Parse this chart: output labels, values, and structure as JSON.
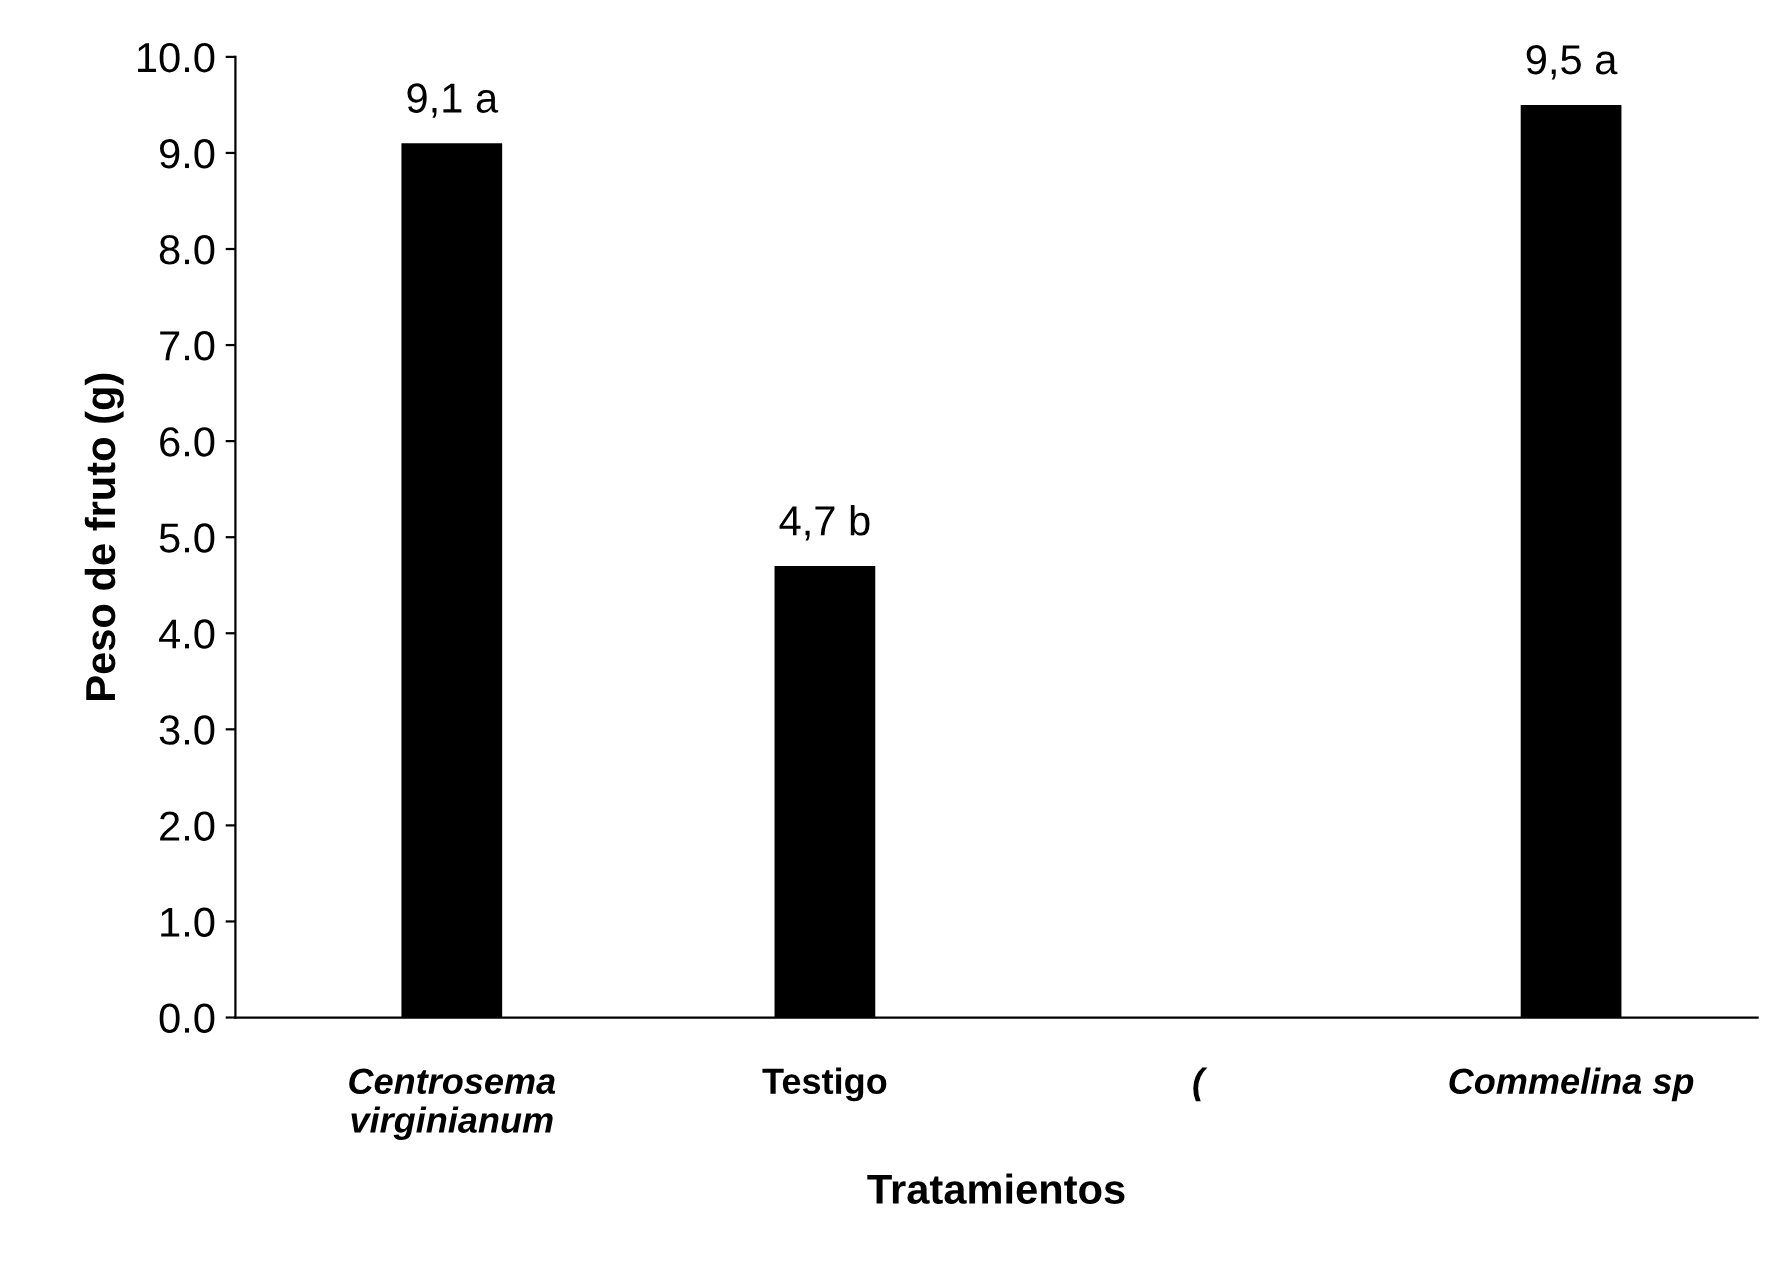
{
  "chart_data": {
    "type": "bar",
    "xlabel": "Tratamientos",
    "ylabel": "Peso de fruto (g)",
    "categories": [
      "Centrosema\nvirginianum",
      "Testigo",
      "(",
      "Commelina sp"
    ],
    "values": [
      9.1,
      4.7,
      null,
      9.5
    ],
    "value_labels": [
      "9,1 a",
      "4,7 b",
      null,
      "9,5 a"
    ],
    "color": "#000000",
    "ylim": [
      0,
      10
    ],
    "yticks": [
      {
        "value": 0,
        "label": "0.0"
      },
      {
        "value": 1,
        "label": "1.0"
      },
      {
        "value": 2,
        "label": "2.0"
      },
      {
        "value": 3,
        "label": "3.0"
      },
      {
        "value": 4,
        "label": "4.0"
      },
      {
        "value": 5,
        "label": "5.0"
      },
      {
        "value": 6,
        "label": "6.0"
      },
      {
        "value": 7,
        "label": "7.0"
      },
      {
        "value": 8,
        "label": "8.0"
      },
      {
        "value": 9,
        "label": "9.0"
      },
      {
        "value": 10,
        "label": "10.0"
      }
    ],
    "grid": false,
    "legend": false
  }
}
